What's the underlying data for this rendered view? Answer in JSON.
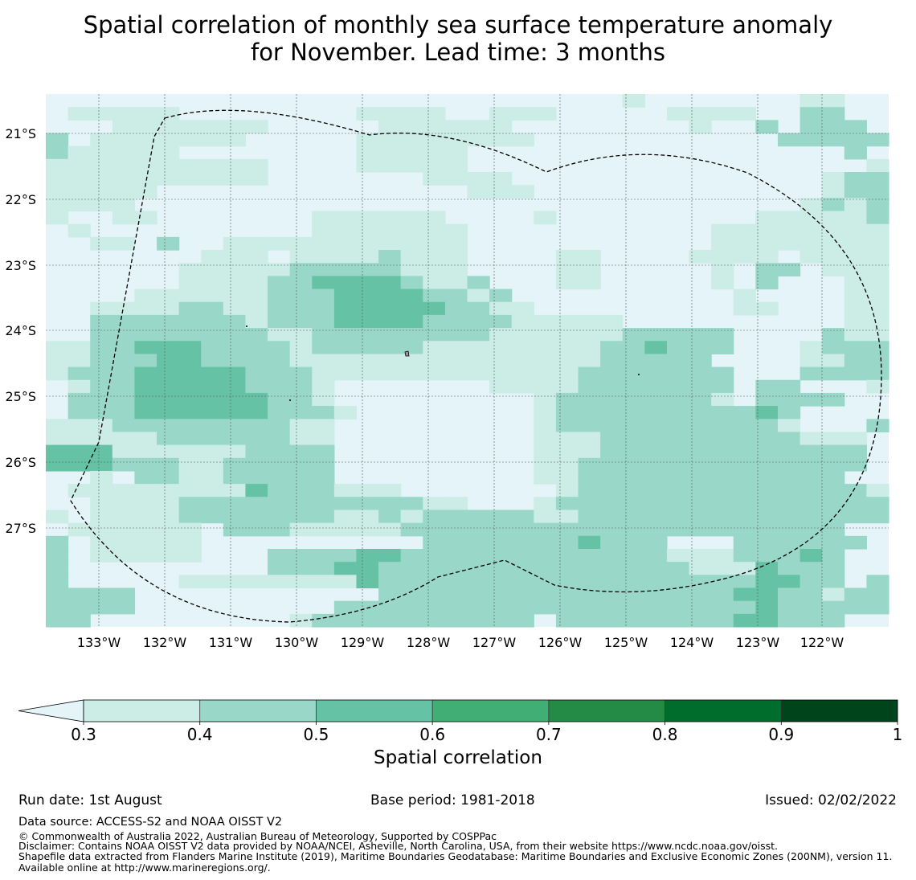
{
  "title_line1": "Spatial correlation of monthly sea surface temperature anomaly",
  "title_line2": "for November. Lead time: 3 months",
  "map": {
    "lon_labels": [
      "133°W",
      "132°W",
      "131°W",
      "130°W",
      "129°W",
      "128°W",
      "127°W",
      "126°W",
      "125°W",
      "124°W",
      "123°W",
      "122°W"
    ],
    "lat_labels": [
      "21°S",
      "22°S",
      "23°S",
      "24°S",
      "25°S",
      "26°S",
      "27°S"
    ],
    "colors": {
      "below": "#e5f4f9",
      "bins": [
        "#ccece6",
        "#99d8c9",
        "#66c2a4",
        "#41ae76",
        "#238b45",
        "#006d2c",
        "#00441b"
      ]
    },
    "boundary_style": "dashed black line (EEZ)",
    "grid_levels": [
      "..........................1.......11..",
      ".11111........1111..111.....1111..22..",
      "...1111111.....111111........1..2.222.",
      "2.1111111.....11111111...........22222",
      "211111........11111.................2.",
      "1111111111....11111..................1",
      "1111111111.......1111..............122",
      "11111..............111.............122",
      "1111..............................1212",
      "1..11.......111111....1.........111112",
      ".1..........1111111...........11111111",
      "..11.2..11111111111...........11111111",
      ".......111.11112111....11....1111.1111",
      "......1111122222111....11.....1.22.111",
      "......11112233332112...11.....1.2...11",
      "....11111122233332212..........1....11",
      "..11112211222333332211.........11...11",
      "..222222212223333222211111..........11",
      "..22222222112222222211111122222....211",
      "1122333222212222211111111223222...1222",
      "112223322221111111111111122222....1122",
      "1222333332221111111111112222222...2222",
      ".122333332221.......11112222222.22...1",
      ".222333333221.........122222221.2222..",
      ".2223333332221........122222222232....",
      "1112222222211.........122222222221...2",
      "1111122222211.........111222222222111.",
      "3331111112222.........111222222222222.",
      "3332221122222.........112222222222222.",
      "..1.221122222.........11222222222222..",
      ".111111113222111.......122222222222221",
      "..11112222222222211...1222222222222222",
      "1.111122222221121222221122222222222222",
      ".111111.2221111122222222222222222222..",
      "2.11111..........22222223222...222222.",
      "2.11111...22223322222222222211122232..",
      "2.........22233222222222222221113222..",
      "2.....111111113222222222222222223322.2",
      "2222...........22222222222222223322122",
      "2222.........2222222222222222222322222",
      "22.........12222222222.2222222233222.."
    ]
  },
  "colorbar": {
    "tick_labels": [
      "0.3",
      "0.4",
      "0.5",
      "0.6",
      "0.7",
      "0.8",
      "0.9",
      "1"
    ],
    "label": "Spatial correlation"
  },
  "footer": {
    "run_date": "Run date: 1st August",
    "base_period": "Base period: 1981-2018",
    "issued": "Issued: 02/02/2022",
    "data_source": "Data source: ACCESS-S2 and NOAA OISST V2",
    "copyright": "© Commonwealth of Australia 2022, Australian Bureau of Meteorology, Supported by COSPPac",
    "disclaimer": "Disclaimer: Contains NOAA OISST V2 data provided by NOAA/NCEI, Asheville, North Carolina, USA, from their website https://www.ncdc.noaa.gov/oisst.",
    "shapefile": "Shapefile data extracted from Flanders Marine Institute (2019), Maritime Boundaries Geodatabase: Maritime Boundaries and Exclusive Economic Zones (200NM), version 11. Available online at http://www.marineregions.org/."
  }
}
